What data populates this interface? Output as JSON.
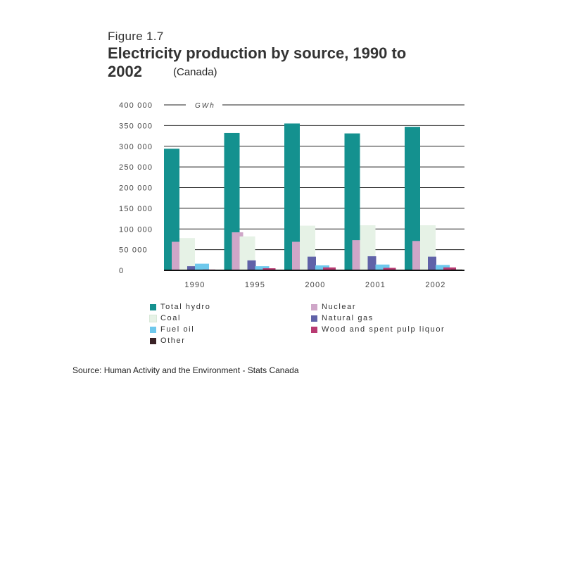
{
  "figure_label": "Figure 1.7",
  "title_line1": "Electricity production by source, 1990 to",
  "title_line2": "2002",
  "subtitle": "(Canada)",
  "source": "Source: Human Activity and the Environment - Stats Canada",
  "chart_data": {
    "type": "bar",
    "title": "Electricity production by source, 1990 to 2002",
    "subtitle": "(Canada)",
    "unit_label": "GWh",
    "xlabel": "",
    "ylabel": "GWh",
    "ylim": [
      0,
      400000
    ],
    "y_ticks": [
      0,
      50000,
      100000,
      150000,
      200000,
      250000,
      300000,
      350000,
      400000
    ],
    "y_tick_labels": [
      "0",
      "50 000",
      "100 000",
      "150 000",
      "200 000",
      "250 000",
      "300 000",
      "350 000",
      "400 000"
    ],
    "grid": true,
    "legend_position": "bottom",
    "categories": [
      "1990",
      "1995",
      "2000",
      "2001",
      "2002"
    ],
    "series": [
      {
        "name": "Total hydro",
        "color": "#14918f",
        "values": [
          294000,
          332000,
          355000,
          331000,
          347000
        ]
      },
      {
        "name": "Nuclear",
        "color": "#cfa6c8",
        "values": [
          69000,
          92000,
          69000,
          73000,
          71000
        ]
      },
      {
        "name": "Coal",
        "color": "#e6f2e6",
        "values": [
          78000,
          82000,
          108000,
          109000,
          109000
        ]
      },
      {
        "name": "Natural gas",
        "color": "#6062a8",
        "values": [
          10000,
          24000,
          33000,
          34000,
          33000
        ]
      },
      {
        "name": "Fuel oil",
        "color": "#6ec8ec",
        "values": [
          16000,
          10000,
          12000,
          14000,
          13000
        ]
      },
      {
        "name": "Wood and spent pulp liquor",
        "color": "#b83a72",
        "values": [
          2000,
          5000,
          7000,
          6000,
          7000
        ]
      },
      {
        "name": "Other",
        "color": "#3a2226",
        "values": [
          1000,
          1000,
          1000,
          1000,
          2000
        ]
      }
    ]
  }
}
